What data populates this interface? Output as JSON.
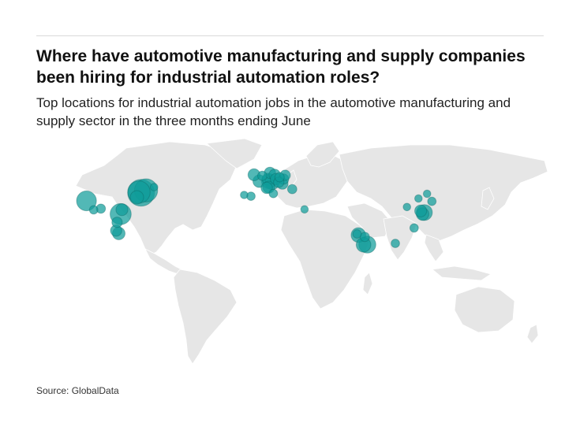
{
  "header": {
    "title": "Where have automotive manufacturing and supply companies been hiring for industrial automation roles?",
    "subtitle": "Top locations for industrial automation jobs in the automotive manufacturing and supply sector in the three months ending June"
  },
  "footer": {
    "source": "Source: GlobalData"
  },
  "colors": {
    "land": "#e6e6e6",
    "border": "#ffffff",
    "bubble": "#0f9d9a",
    "bubble_dark": "#0a3a3c"
  },
  "map_data": {
    "type": "bubble-map",
    "region": "world",
    "bubble_color": "#0f9d9a",
    "bubbles": [
      {
        "lon": -122.4,
        "lat": 37.8,
        "size": 0.55
      },
      {
        "lon": -117.2,
        "lat": 32.7,
        "size": 0.1
      },
      {
        "lon": -112.0,
        "lat": 33.4,
        "size": 0.12
      },
      {
        "lon": -97.7,
        "lat": 30.3,
        "size": 0.62
      },
      {
        "lon": -96.8,
        "lat": 32.8,
        "size": 0.2
      },
      {
        "lon": -99.1,
        "lat": 19.4,
        "size": 0.22
      },
      {
        "lon": -100.3,
        "lat": 25.7,
        "size": 0.15
      },
      {
        "lon": -101.0,
        "lat": 21.0,
        "size": 0.18
      },
      {
        "lon": -83.0,
        "lat": 42.3,
        "size": 1.0
      },
      {
        "lon": -84.5,
        "lat": 42.7,
        "size": 0.7
      },
      {
        "lon": -79.4,
        "lat": 43.7,
        "size": 0.75
      },
      {
        "lon": -86.0,
        "lat": 39.8,
        "size": 0.25
      },
      {
        "lon": -73.6,
        "lat": 45.5,
        "size": 0.08
      },
      {
        "lon": -8.6,
        "lat": 41.1,
        "size": 0.08
      },
      {
        "lon": -3.7,
        "lat": 40.4,
        "size": 0.1
      },
      {
        "lon": 2.3,
        "lat": 48.9,
        "size": 0.22
      },
      {
        "lon": -1.5,
        "lat": 52.5,
        "size": 0.2
      },
      {
        "lon": 4.5,
        "lat": 51.9,
        "size": 0.12
      },
      {
        "lon": 9.2,
        "lat": 48.8,
        "size": 0.3
      },
      {
        "lon": 11.6,
        "lat": 48.1,
        "size": 0.28
      },
      {
        "lon": 10.0,
        "lat": 53.6,
        "size": 0.18
      },
      {
        "lon": 13.4,
        "lat": 52.5,
        "size": 0.18
      },
      {
        "lon": 8.7,
        "lat": 50.1,
        "size": 0.2
      },
      {
        "lon": 7.7,
        "lat": 45.1,
        "size": 0.18
      },
      {
        "lon": 9.2,
        "lat": 45.5,
        "size": 0.2
      },
      {
        "lon": 14.4,
        "lat": 50.1,
        "size": 0.18
      },
      {
        "lon": 19.0,
        "lat": 47.5,
        "size": 0.18
      },
      {
        "lon": 19.9,
        "lat": 50.1,
        "size": 0.15
      },
      {
        "lon": 21.0,
        "lat": 52.2,
        "size": 0.15
      },
      {
        "lon": 26.1,
        "lat": 44.4,
        "size": 0.12
      },
      {
        "lon": 16.4,
        "lat": 48.2,
        "size": 0.15
      },
      {
        "lon": 12.5,
        "lat": 41.9,
        "size": 0.1
      },
      {
        "lon": 17.0,
        "lat": 51.1,
        "size": 0.12
      },
      {
        "lon": 35.0,
        "lat": 33.0,
        "size": 0.08
      },
      {
        "lon": 72.9,
        "lat": 19.1,
        "size": 0.1
      },
      {
        "lon": 73.9,
        "lat": 18.5,
        "size": 0.3
      },
      {
        "lon": 77.6,
        "lat": 13.0,
        "size": 0.3
      },
      {
        "lon": 80.3,
        "lat": 13.1,
        "size": 0.4
      },
      {
        "lon": 78.5,
        "lat": 17.4,
        "size": 0.12
      },
      {
        "lon": 100.5,
        "lat": 13.8,
        "size": 0.1
      },
      {
        "lon": 108.9,
        "lat": 34.3,
        "size": 0.08
      },
      {
        "lon": 114.1,
        "lat": 22.5,
        "size": 0.1
      },
      {
        "lon": 121.5,
        "lat": 31.2,
        "size": 0.35
      },
      {
        "lon": 120.2,
        "lat": 30.3,
        "size": 0.22
      },
      {
        "lon": 118.8,
        "lat": 32.1,
        "size": 0.2
      },
      {
        "lon": 123.4,
        "lat": 41.8,
        "size": 0.08
      },
      {
        "lon": 117.2,
        "lat": 39.1,
        "size": 0.08
      },
      {
        "lon": 126.9,
        "lat": 37.5,
        "size": 0.1
      }
    ]
  }
}
